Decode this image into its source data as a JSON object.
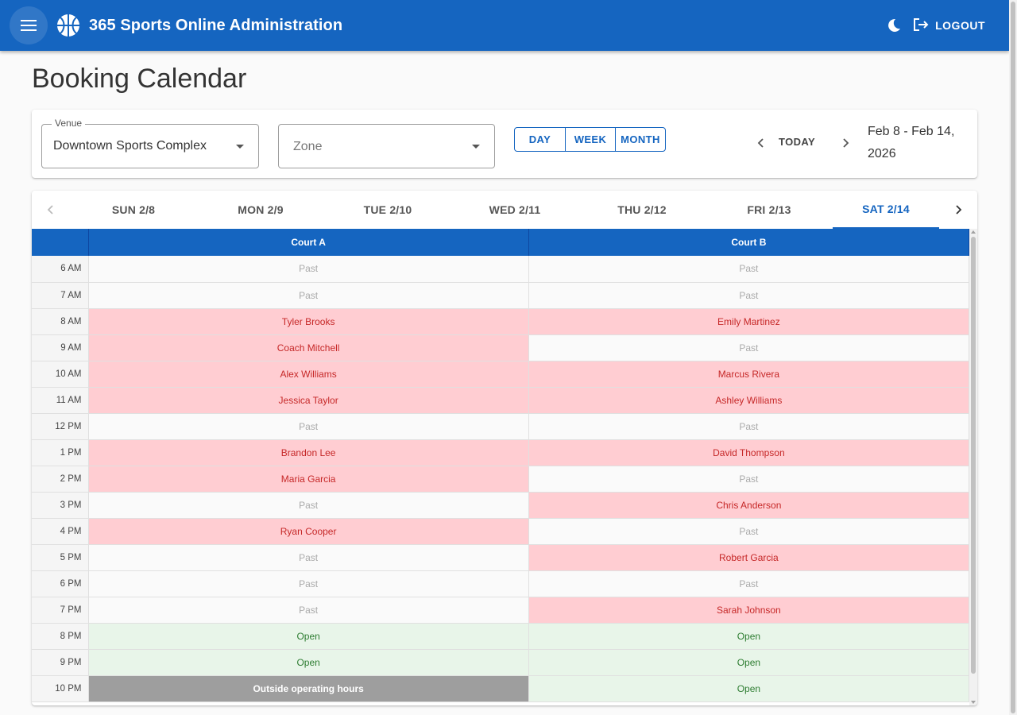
{
  "appbar": {
    "title": "365 Sports Online Administration",
    "menu_icon": "hamburger-menu-icon",
    "logo_icon": "basketball-logo-icon",
    "theme_icon": "moon-icon",
    "logout_icon": "logout-icon",
    "logout_label": "LOGOUT",
    "color": "#1565c0"
  },
  "page": {
    "title": "Booking Calendar"
  },
  "filters": {
    "venue": {
      "label": "Venue",
      "value": "Downtown Sports Complex"
    },
    "zone": {
      "placeholder": "Zone"
    },
    "view_modes": [
      "DAY",
      "WEEK",
      "MONTH"
    ],
    "today_label": "TODAY",
    "date_range": "Feb 8 - Feb 14, 2026"
  },
  "days": [
    {
      "label": "SUN 2/8"
    },
    {
      "label": "MON 2/9"
    },
    {
      "label": "TUE 2/10"
    },
    {
      "label": "WED 2/11"
    },
    {
      "label": "THU 2/12"
    },
    {
      "label": "FRI 2/13"
    },
    {
      "label": "SAT 2/14",
      "active": true
    }
  ],
  "grid": {
    "courts": [
      "Court A",
      "Court B"
    ],
    "rows": [
      {
        "time": "6 AM",
        "a": {
          "text": "Past",
          "status": "past"
        },
        "b": {
          "text": "Past",
          "status": "past"
        }
      },
      {
        "time": "7 AM",
        "a": {
          "text": "Past",
          "status": "past"
        },
        "b": {
          "text": "Past",
          "status": "past"
        }
      },
      {
        "time": "8 AM",
        "a": {
          "text": "Tyler Brooks",
          "status": "booked"
        },
        "b": {
          "text": "Emily Martinez",
          "status": "booked"
        }
      },
      {
        "time": "9 AM",
        "a": {
          "text": "Coach Mitchell",
          "status": "booked"
        },
        "b": {
          "text": "Past",
          "status": "past"
        }
      },
      {
        "time": "10 AM",
        "a": {
          "text": "Alex Williams",
          "status": "booked"
        },
        "b": {
          "text": "Marcus Rivera",
          "status": "booked"
        }
      },
      {
        "time": "11 AM",
        "a": {
          "text": "Jessica Taylor",
          "status": "booked"
        },
        "b": {
          "text": "Ashley Williams",
          "status": "booked"
        }
      },
      {
        "time": "12 PM",
        "a": {
          "text": "Past",
          "status": "past"
        },
        "b": {
          "text": "Past",
          "status": "past"
        }
      },
      {
        "time": "1 PM",
        "a": {
          "text": "Brandon Lee",
          "status": "booked"
        },
        "b": {
          "text": "David Thompson",
          "status": "booked"
        }
      },
      {
        "time": "2 PM",
        "a": {
          "text": "Maria Garcia",
          "status": "booked"
        },
        "b": {
          "text": "Past",
          "status": "past"
        }
      },
      {
        "time": "3 PM",
        "a": {
          "text": "Past",
          "status": "past"
        },
        "b": {
          "text": "Chris Anderson",
          "status": "booked"
        }
      },
      {
        "time": "4 PM",
        "a": {
          "text": "Ryan Cooper",
          "status": "booked"
        },
        "b": {
          "text": "Past",
          "status": "past"
        }
      },
      {
        "time": "5 PM",
        "a": {
          "text": "Past",
          "status": "past"
        },
        "b": {
          "text": "Robert Garcia",
          "status": "booked"
        }
      },
      {
        "time": "6 PM",
        "a": {
          "text": "Past",
          "status": "past"
        },
        "b": {
          "text": "Past",
          "status": "past"
        }
      },
      {
        "time": "7 PM",
        "a": {
          "text": "Past",
          "status": "past"
        },
        "b": {
          "text": "Sarah Johnson",
          "status": "booked"
        }
      },
      {
        "time": "8 PM",
        "a": {
          "text": "Open",
          "status": "open"
        },
        "b": {
          "text": "Open",
          "status": "open"
        }
      },
      {
        "time": "9 PM",
        "a": {
          "text": "Open",
          "status": "open"
        },
        "b": {
          "text": "Open",
          "status": "open"
        }
      },
      {
        "time": "10 PM",
        "a": {
          "text": "Outside operating hours",
          "status": "closed"
        },
        "b": {
          "text": "Open",
          "status": "open"
        }
      }
    ]
  },
  "colors": {
    "primary": "#1565c0",
    "booked_bg": "#ffcdd2",
    "booked_text": "#c62828",
    "open_bg": "#e8f5e9",
    "open_text": "#2e7d32",
    "closed_bg": "#9e9e9e"
  }
}
